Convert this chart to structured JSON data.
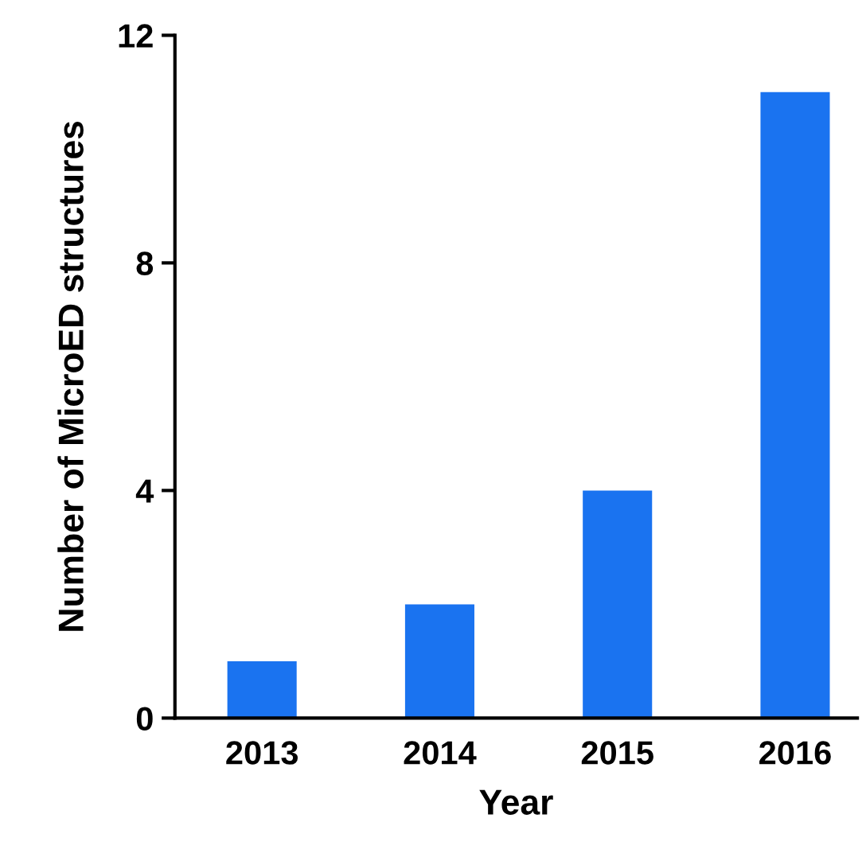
{
  "chart_data": {
    "type": "bar",
    "xlabel": "Year",
    "ylabel": "Number of MicroED structures",
    "categories": [
      "2013",
      "2014",
      "2015",
      "2016"
    ],
    "values": [
      1,
      2,
      4,
      11
    ],
    "color": "#1a73f0",
    "ylim": [
      0,
      12
    ],
    "yticks": [
      0,
      4,
      8,
      12
    ],
    "grid": false,
    "legend": false
  }
}
